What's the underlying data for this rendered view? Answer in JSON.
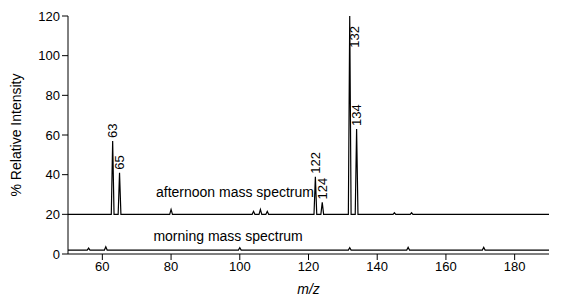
{
  "chart_data": {
    "type": "line",
    "x_label": "m/z",
    "y_label": "% Relative Intensity",
    "xlim": [
      50,
      190
    ],
    "xticks": [
      60,
      80,
      100,
      120,
      140,
      160,
      180
    ],
    "ylim": [
      0,
      120
    ],
    "yticks": [
      0,
      20,
      40,
      60,
      80,
      100,
      120
    ],
    "grid": false,
    "series": [
      {
        "color": "#000000",
        "x": [
          50,
          62.6,
          63,
          63.4,
          64.6,
          65,
          65.4,
          79.6,
          80,
          80.4,
          103.6,
          104,
          104.4,
          105.6,
          106,
          106.4,
          107.6,
          108,
          108.4,
          121.6,
          122,
          122.4,
          123.6,
          124,
          124.4,
          131.6,
          132,
          132.4,
          133.6,
          134,
          134.4,
          144.6,
          145,
          145.4,
          149.6,
          150,
          150.4,
          190
        ],
        "values": [
          20,
          20,
          57,
          20,
          20,
          41,
          20,
          20,
          22.5,
          20,
          20,
          21.5,
          20,
          20,
          22.5,
          20,
          20,
          21.5,
          20,
          20,
          39,
          20,
          20,
          26,
          20,
          20,
          120,
          20,
          20,
          63,
          20,
          20,
          20.8,
          20,
          20,
          20.8,
          20,
          20
        ],
        "peak_labels": [
          63,
          65,
          122,
          124,
          132,
          134
        ]
      },
      {
        "color": "#000000",
        "x": [
          50,
          55.6,
          56,
          56.4,
          60.6,
          61,
          61.4,
          99.6,
          100,
          100.4,
          131.6,
          132,
          132.4,
          148.6,
          149,
          149.4,
          170.6,
          171,
          171.4,
          190
        ],
        "values": [
          2,
          2,
          3,
          2,
          2,
          3.6,
          2,
          2,
          3.2,
          2,
          2,
          3.2,
          2,
          2,
          3.4,
          2,
          2,
          3.4,
          2,
          2
        ]
      }
    ],
    "annotations": [
      {
        "text": "afternoon mass spectrum",
        "x": 98.6,
        "y": 31.5
      },
      {
        "text": "morning mass spectrum",
        "x": 96.6,
        "y": 9
      }
    ]
  }
}
